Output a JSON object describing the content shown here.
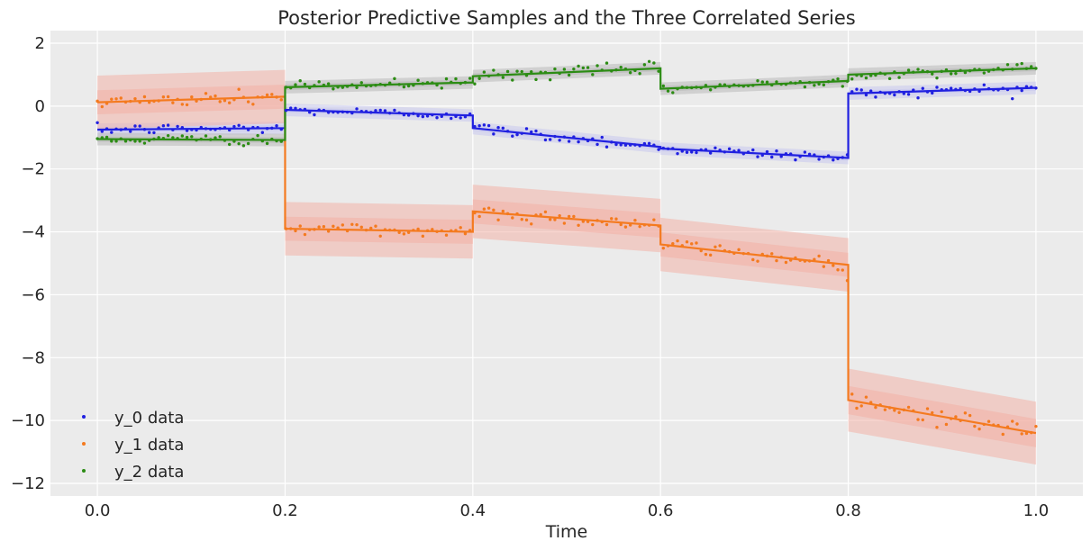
{
  "chart_data": {
    "type": "scatter",
    "title": "Posterior Predictive Samples and the Three Correlated Series",
    "xlabel": "Time",
    "ylabel": "",
    "xlim": [
      -0.05,
      1.05
    ],
    "ylim": [
      -12.4,
      2.4
    ],
    "x_ticks": [
      0.0,
      0.2,
      0.4,
      0.6,
      0.8,
      1.0
    ],
    "x_tick_labels": [
      "0.0",
      "0.2",
      "0.4",
      "0.6",
      "0.8",
      "1.0"
    ],
    "y_ticks": [
      2,
      0,
      -2,
      -4,
      -6,
      -8,
      -10,
      -12
    ],
    "y_tick_labels": [
      "2",
      "0",
      "−2",
      "−4",
      "−6",
      "−8",
      "−10",
      "−12"
    ],
    "grid": true,
    "legend_position": "lower-left",
    "background_color": "#ebebeb",
    "n_points": 200,
    "series": [
      {
        "name": "y_0 data",
        "color": "#2020e0",
        "band_color": "#c8c8ee",
        "segments": [
          {
            "x": [
              0.0,
              0.2
            ],
            "y": [
              -0.75,
              -0.7
            ],
            "noise": 0.08,
            "band": 0.2
          },
          {
            "x": [
              0.2,
              0.4
            ],
            "y": [
              -0.12,
              -0.3
            ],
            "noise": 0.07,
            "band": 0.2
          },
          {
            "x": [
              0.4,
              0.6
            ],
            "y": [
              -0.7,
              -1.3
            ],
            "noise": 0.09,
            "band": 0.2
          },
          {
            "x": [
              0.6,
              0.8
            ],
            "y": [
              -1.35,
              -1.65
            ],
            "noise": 0.08,
            "band": 0.2
          },
          {
            "x": [
              0.8,
              1.0
            ],
            "y": [
              0.4,
              0.58
            ],
            "noise": 0.08,
            "band": 0.2
          }
        ]
      },
      {
        "name": "y_1 data",
        "color": "#f47a1f",
        "band_color": "#f2b2a8",
        "segments": [
          {
            "x": [
              0.0,
              0.2
            ],
            "y": [
              0.12,
              0.3
            ],
            "noise": 0.12,
            "band": 0.85
          },
          {
            "x": [
              0.2,
              0.4
            ],
            "y": [
              -3.9,
              -4.0
            ],
            "noise": 0.12,
            "band": 0.85
          },
          {
            "x": [
              0.4,
              0.6
            ],
            "y": [
              -3.35,
              -3.8
            ],
            "noise": 0.12,
            "band": 0.85
          },
          {
            "x": [
              0.6,
              0.8
            ],
            "y": [
              -4.4,
              -5.05
            ],
            "noise": 0.12,
            "band": 0.85
          },
          {
            "x": [
              0.8,
              1.0
            ],
            "y": [
              -9.35,
              -10.4
            ],
            "noise": 0.15,
            "band": 1.0
          }
        ]
      },
      {
        "name": "y_2 data",
        "color": "#2c8c14",
        "band_color": "#b9b9b9",
        "segments": [
          {
            "x": [
              0.0,
              0.2
            ],
            "y": [
              -1.05,
              -1.08
            ],
            "noise": 0.08,
            "band": 0.2
          },
          {
            "x": [
              0.2,
              0.4
            ],
            "y": [
              0.6,
              0.75
            ],
            "noise": 0.08,
            "band": 0.2
          },
          {
            "x": [
              0.4,
              0.6
            ],
            "y": [
              0.95,
              1.2
            ],
            "noise": 0.1,
            "band": 0.2
          },
          {
            "x": [
              0.6,
              0.8
            ],
            "y": [
              0.55,
              0.8
            ],
            "noise": 0.08,
            "band": 0.2
          },
          {
            "x": [
              0.8,
              1.0
            ],
            "y": [
              1.0,
              1.2
            ],
            "noise": 0.08,
            "band": 0.2
          }
        ]
      }
    ]
  }
}
